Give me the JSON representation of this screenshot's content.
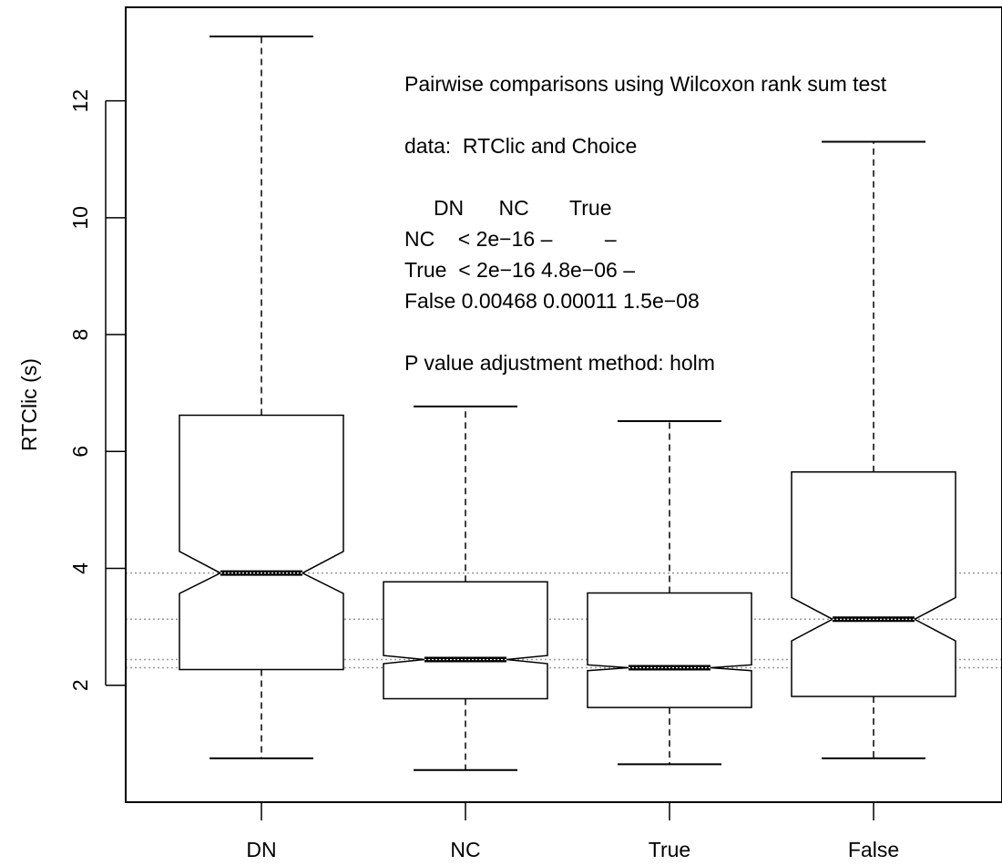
{
  "chart_data": {
    "type": "boxplot",
    "notched": true,
    "ylabel": "RTClic (s)",
    "xlabel": "",
    "ylim": [
      0.0,
      13.6
    ],
    "yticks": [
      2,
      4,
      6,
      8,
      10,
      12
    ],
    "categories": [
      "DN",
      "NC",
      "True",
      "False"
    ],
    "boxes": [
      {
        "name": "DN",
        "whisker_low": 0.75,
        "q1": 2.27,
        "median": 3.92,
        "q3": 6.62,
        "whisker_high": 13.1,
        "notch_low": 3.57,
        "notch_high": 4.29
      },
      {
        "name": "NC",
        "whisker_low": 0.55,
        "q1": 1.77,
        "median": 2.44,
        "q3": 3.77,
        "whisker_high": 6.77,
        "notch_low": 2.37,
        "notch_high": 2.51
      },
      {
        "name": "True",
        "whisker_low": 0.65,
        "q1": 1.62,
        "median": 2.3,
        "q3": 3.58,
        "whisker_high": 6.52,
        "notch_low": 2.25,
        "notch_high": 2.35
      },
      {
        "name": "False",
        "whisker_low": 0.75,
        "q1": 1.81,
        "median": 3.13,
        "q3": 5.65,
        "whisker_high": 11.3,
        "notch_low": 2.76,
        "notch_high": 3.5
      }
    ],
    "median_reference_lines": [
      3.92,
      3.13,
      2.44,
      2.3
    ],
    "annotation_lines": [
      "Pairwise comparisons using Wilcoxon rank sum test",
      "data:  RTClic and Choice",
      "     DN      NC       True",
      "NC    < 2e−16 –         –",
      "True  < 2e−16 4.8e−06 –",
      "False 0.00468 0.00011 1.5e−08",
      "P value adjustment method: holm"
    ],
    "colors": {
      "box": "#000000",
      "reference_line": "#999999",
      "median": "#000000"
    }
  }
}
